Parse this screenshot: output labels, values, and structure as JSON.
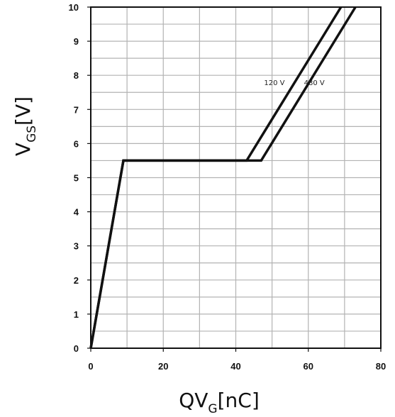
{
  "chart_data": {
    "type": "line",
    "xlabel": "QV",
    "xlabel_subscript": "G",
    "xlabel_unit": "[nC]",
    "ylabel": "V",
    "ylabel_subscript": "GS",
    "ylabel_unit": "[V]",
    "xlim": [
      0,
      80
    ],
    "ylim": [
      0,
      10
    ],
    "x_ticks": [
      0,
      20,
      40,
      60,
      80
    ],
    "y_ticks": [
      0,
      1,
      2,
      3,
      4,
      5,
      6,
      7,
      8,
      9,
      10
    ],
    "grid": true,
    "grid_minor": {
      "x_step": 10,
      "y_step": 0.5
    },
    "series": [
      {
        "name": "120 V",
        "x": [
          0,
          9,
          43,
          69
        ],
        "y": [
          0,
          5.5,
          5.5,
          10
        ]
      },
      {
        "name": "480 V",
        "x": [
          0,
          9,
          47,
          73
        ],
        "y": [
          0,
          5.5,
          5.5,
          10
        ]
      }
    ],
    "line_color": "#111111",
    "grid_color": "#b3b3b3"
  }
}
